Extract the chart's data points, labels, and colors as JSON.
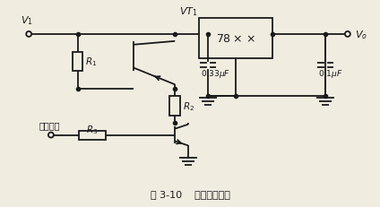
{
  "title": "图 3-10    遥控关断电路",
  "bg_color": "#f0ece0",
  "line_color": "#1a1a1a",
  "lw": 1.3
}
